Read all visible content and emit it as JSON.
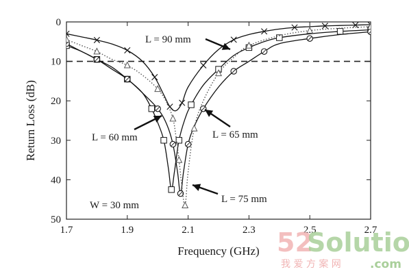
{
  "chart_data": {
    "type": "line",
    "xlabel": "Frequency (GHz)",
    "ylabel": "Return Loss (dB)",
    "xlim": [
      1.7,
      2.7
    ],
    "ylim": [
      0,
      50
    ],
    "y_inverted": true,
    "x_ticks": [
      "1.7",
      "1.9",
      "2.1",
      "2.3",
      "2.5",
      "2.7"
    ],
    "y_ticks": [
      "0",
      "10",
      "20",
      "30",
      "40",
      "50"
    ],
    "reference_line": {
      "y": 10,
      "style": "dashed"
    },
    "annotations": [
      {
        "id": "l90",
        "text": "L = 90 mm"
      },
      {
        "id": "l60",
        "text": "L = 60 mm"
      },
      {
        "id": "l65",
        "text": "L = 65 mm"
      },
      {
        "id": "l75",
        "text": "L = 75 mm"
      },
      {
        "id": "w30",
        "text": "W = 30 mm"
      }
    ],
    "series": [
      {
        "key": "L90",
        "marker": "x",
        "line": "solid",
        "x": [
          1.7,
          1.75,
          1.8,
          1.85,
          1.9,
          1.95,
          1.99,
          2.02,
          2.04,
          2.06,
          2.08,
          2.1,
          2.15,
          2.2,
          2.25,
          2.3,
          2.35,
          2.4,
          2.45,
          2.5,
          2.55,
          2.6,
          2.65,
          2.7
        ],
        "y": [
          3.0,
          3.8,
          4.6,
          5.6,
          7.2,
          10.0,
          14.0,
          18.5,
          21.5,
          22.5,
          20.5,
          16.5,
          11.0,
          7.0,
          4.5,
          3.2,
          2.4,
          1.8,
          1.4,
          1.2,
          1.0,
          0.9,
          0.8,
          0.7
        ]
      },
      {
        "key": "L60",
        "marker": "square",
        "line": "solid",
        "x": [
          1.7,
          1.75,
          1.8,
          1.85,
          1.9,
          1.95,
          1.98,
          2.0,
          2.02,
          2.035,
          2.045,
          2.055,
          2.07,
          2.09,
          2.11,
          2.15,
          2.2,
          2.25,
          2.3,
          2.35,
          2.4,
          2.5,
          2.6,
          2.7
        ],
        "y": [
          6.0,
          7.5,
          9.5,
          11.5,
          14.5,
          18.0,
          22.0,
          25.5,
          30.0,
          37.0,
          42.5,
          38.0,
          30.0,
          24.5,
          21.0,
          16.0,
          12.0,
          8.5,
          6.5,
          5.0,
          4.0,
          3.0,
          2.4,
          2.0
        ]
      },
      {
        "key": "L65",
        "marker": "circle",
        "line": "solid",
        "x": [
          1.7,
          1.75,
          1.8,
          1.85,
          1.9,
          1.95,
          2.0,
          2.03,
          2.05,
          2.065,
          2.075,
          2.085,
          2.1,
          2.12,
          2.15,
          2.2,
          2.25,
          2.3,
          2.35,
          2.4,
          2.5,
          2.6,
          2.7
        ],
        "y": [
          5.5,
          7.5,
          9.5,
          12.0,
          14.5,
          18.0,
          22.0,
          26.0,
          31.0,
          38.0,
          43.5,
          38.0,
          31.0,
          26.5,
          22.0,
          16.5,
          12.5,
          10.0,
          7.5,
          5.5,
          4.2,
          3.2,
          2.5
        ]
      },
      {
        "key": "L75",
        "marker": "triangle",
        "line": "dotted",
        "x": [
          1.7,
          1.75,
          1.8,
          1.85,
          1.9,
          1.95,
          2.0,
          2.03,
          2.05,
          2.06,
          2.07,
          2.08,
          2.09,
          2.1,
          2.12,
          2.15,
          2.2,
          2.25,
          2.3,
          2.4,
          2.5,
          2.6,
          2.7
        ],
        "y": [
          4.5,
          6.0,
          7.5,
          9.5,
          11.0,
          13.5,
          17.0,
          20.5,
          24.5,
          29.0,
          35.0,
          42.0,
          46.5,
          38.0,
          27.0,
          20.0,
          13.0,
          9.0,
          6.0,
          3.5,
          2.2,
          1.6,
          1.2
        ]
      }
    ]
  },
  "watermark": {
    "num": "52",
    "brand": "Solution",
    "sub_cn": "我 爱 方 案 网",
    "sub_com": ".com"
  }
}
